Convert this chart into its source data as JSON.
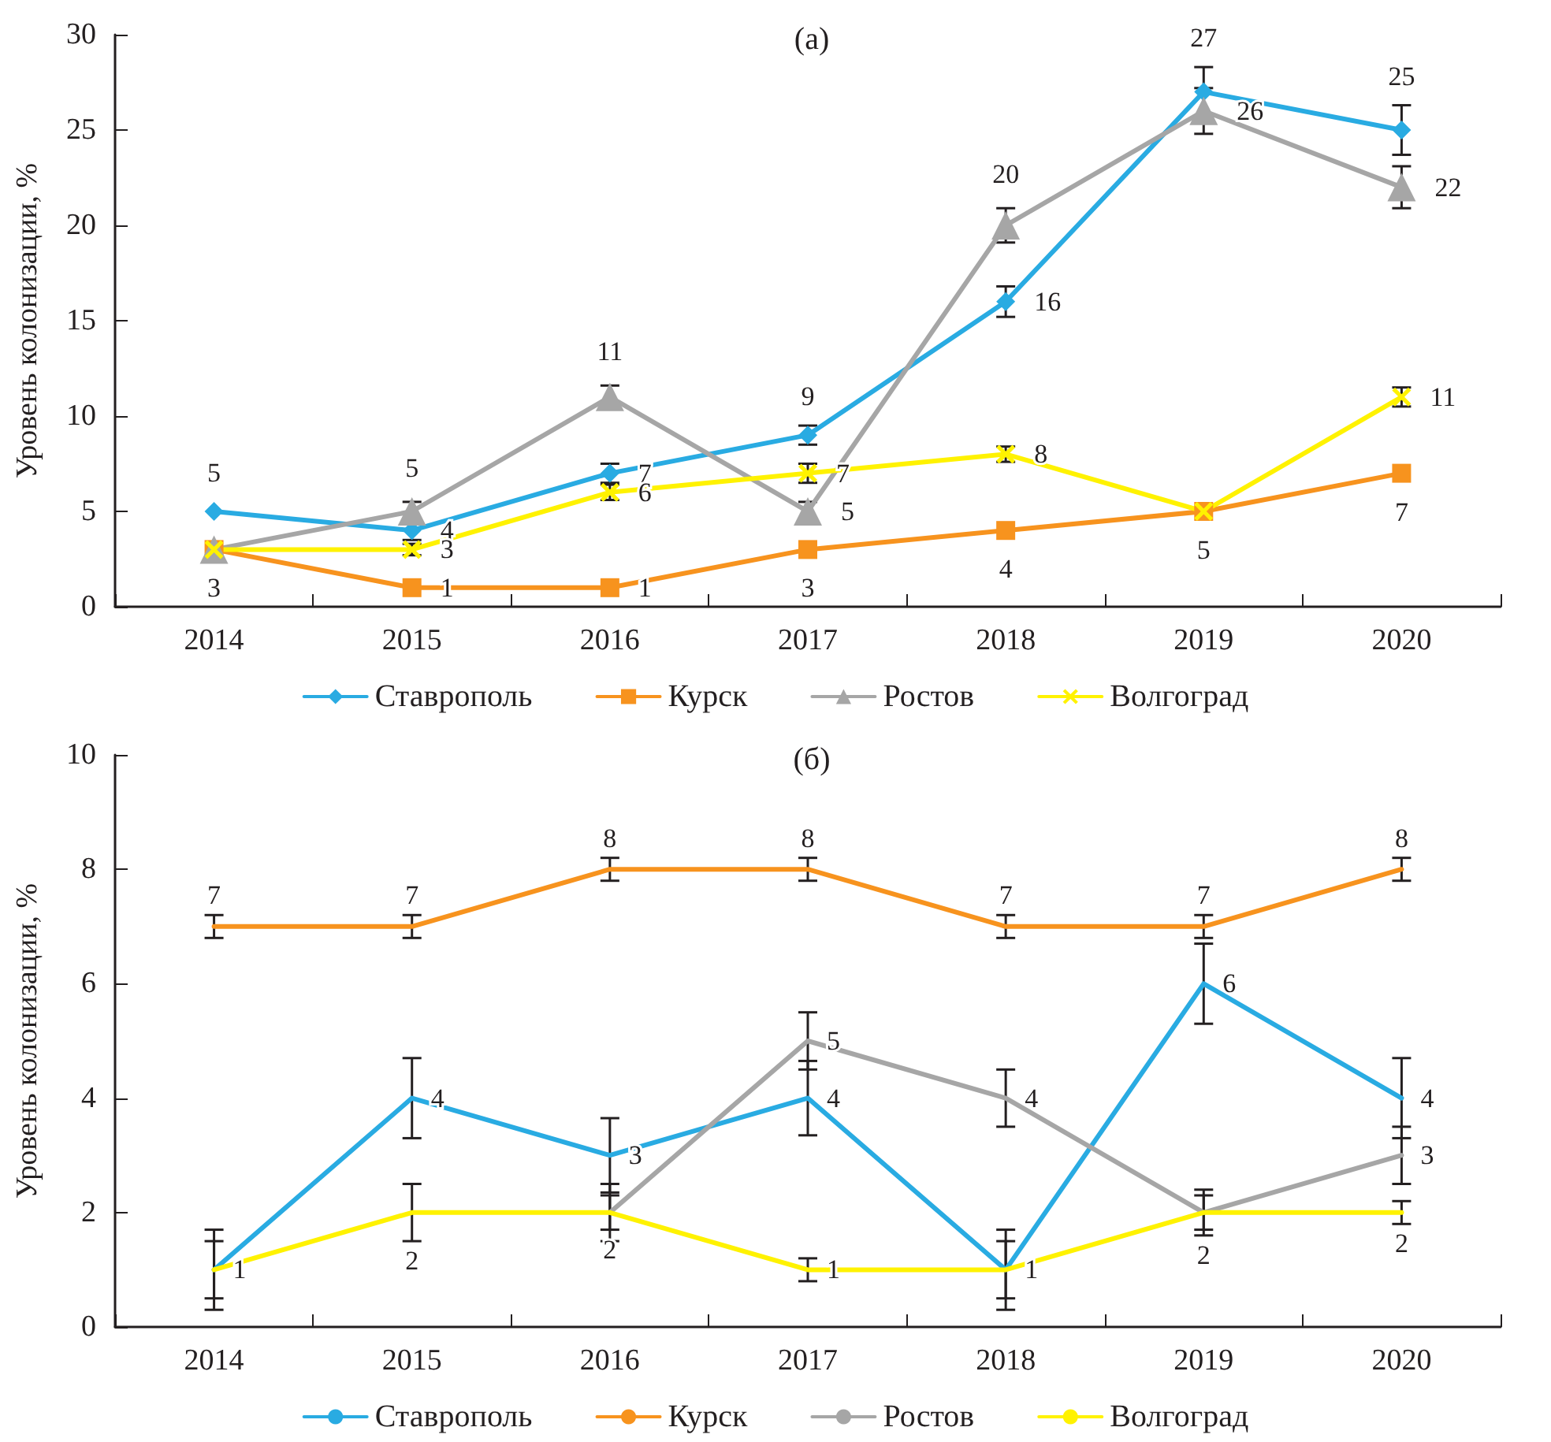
{
  "chart_data": [
    {
      "type": "line",
      "title": "(a)",
      "ylabel": "Уровень колонизации, %",
      "categories": [
        "2014",
        "2015",
        "2016",
        "2017",
        "2018",
        "2019",
        "2020"
      ],
      "ylim": [
        0,
        30
      ],
      "yticks": [
        0,
        5,
        10,
        15,
        20,
        25,
        30
      ],
      "grid": false,
      "legend": "bottom",
      "series": [
        {
          "name": "Ставрополь",
          "color": "#29abe2",
          "marker": "diamond",
          "values": [
            5,
            4,
            7,
            9,
            16,
            27,
            25
          ],
          "errors": [
            null,
            0.5,
            0.5,
            0.5,
            0.8,
            1.3,
            1.3
          ],
          "value_labels": [
            "5",
            "4",
            "7",
            "9",
            "16",
            "27",
            "25"
          ]
        },
        {
          "name": "Курск",
          "color": "#f7931e",
          "marker": "square",
          "values": [
            3,
            1,
            1,
            3,
            4,
            5,
            7
          ],
          "value_labels": [
            "3",
            "1",
            "1",
            "3",
            "4",
            "5",
            "7"
          ]
        },
        {
          "name": "Ростов",
          "color": "#a6a6a6",
          "marker": "triangle",
          "values": [
            3,
            5,
            11,
            5,
            20,
            26,
            22
          ],
          "errors": [
            null,
            0.5,
            0.6,
            0.5,
            0.9,
            1.2,
            1.1
          ],
          "value_labels": [
            null,
            "5",
            "11",
            "5",
            "20",
            "26",
            "22"
          ]
        },
        {
          "name": "Волгоград",
          "color": "#fff200",
          "marker": "cross",
          "values": [
            3,
            3,
            6,
            7,
            8,
            5,
            11
          ],
          "errors": [
            null,
            0.3,
            0.4,
            0.5,
            0.4,
            null,
            0.5
          ],
          "value_labels": [
            null,
            "3",
            "6",
            "7",
            "8",
            null,
            "11"
          ]
        }
      ]
    },
    {
      "type": "line",
      "title": "(б)",
      "ylabel": "Уровень колонизации, %",
      "categories": [
        "2014",
        "2015",
        "2016",
        "2017",
        "2018",
        "2019",
        "2020"
      ],
      "ylim": [
        0,
        10
      ],
      "yticks": [
        0,
        2,
        4,
        6,
        8,
        10
      ],
      "grid": false,
      "legend": "bottom",
      "marker": "none",
      "series": [
        {
          "name": "Ставрополь",
          "color": "#29abe2",
          "values": [
            1,
            4,
            3,
            4,
            1,
            6,
            4
          ],
          "errors": [
            0.7,
            0.7,
            0.65,
            0.65,
            0.7,
            0.7,
            0.7
          ],
          "value_labels": [
            "1",
            "4",
            "3",
            "4",
            "1",
            "6",
            "4"
          ]
        },
        {
          "name": "Курск",
          "color": "#f7931e",
          "values": [
            7,
            7,
            8,
            8,
            7,
            7,
            8
          ],
          "errors": [
            0.2,
            0.2,
            0.2,
            0.2,
            0.2,
            0.2,
            0.2
          ],
          "value_labels": [
            "7",
            "7",
            "8",
            "8",
            "7",
            "7",
            "8"
          ]
        },
        {
          "name": "Ростов",
          "color": "#a6a6a6",
          "values": [
            null,
            null,
            2,
            5,
            4,
            2,
            3
          ],
          "errors": [
            null,
            null,
            0.3,
            0.5,
            0.5,
            0.4,
            0.5
          ],
          "value_labels": [
            null,
            null,
            "2",
            "5",
            "4",
            "2",
            "3"
          ]
        },
        {
          "name": "Волгоград",
          "color": "#fff200",
          "values": [
            1,
            2,
            2,
            1,
            1,
            2,
            2
          ],
          "errors": [
            0.5,
            0.5,
            0.5,
            0.2,
            0.5,
            0.3,
            0.2
          ],
          "value_labels": [
            null,
            "2",
            null,
            "1",
            null,
            null,
            "2"
          ]
        }
      ]
    }
  ]
}
